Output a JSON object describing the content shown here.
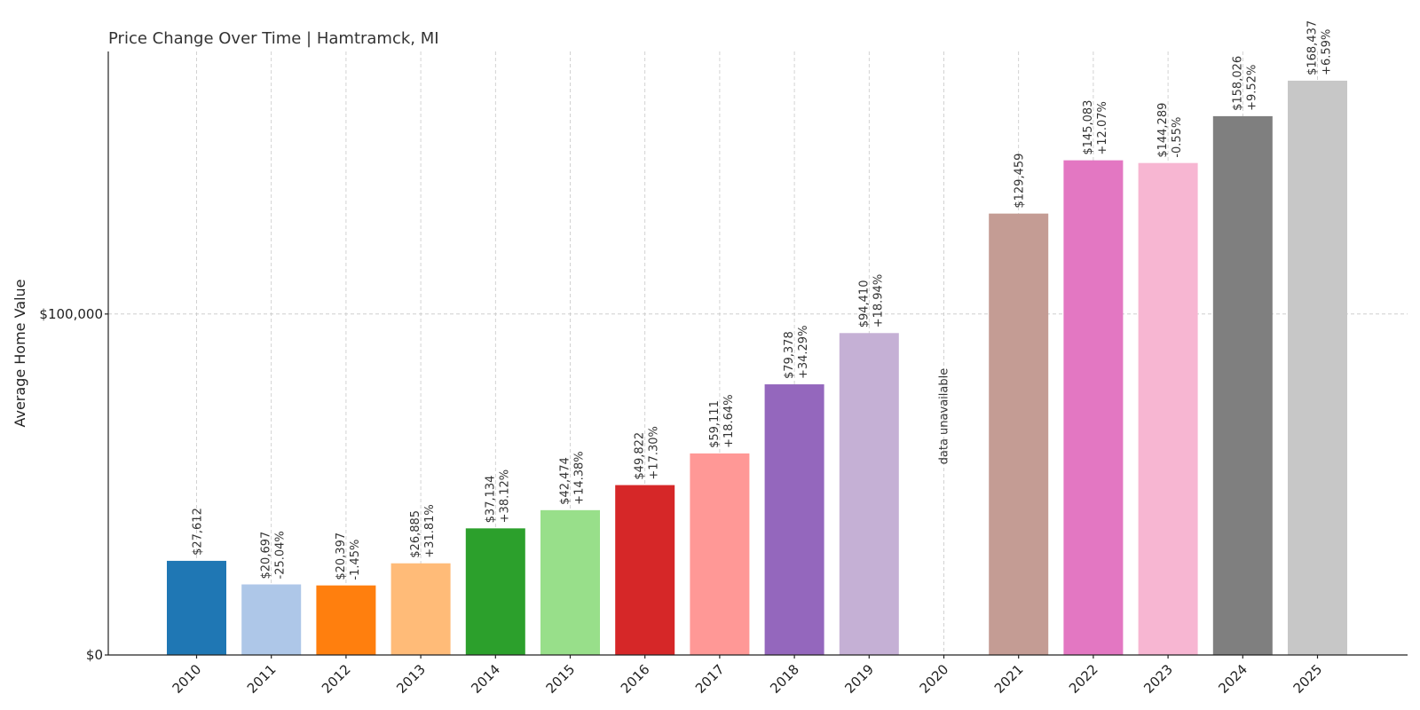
{
  "chart_data": {
    "type": "bar",
    "title": "Price Change Over Time | Hamtramck, MI",
    "ylabel": "Average Home Value",
    "xlabel": "",
    "ylim": [
      0,
      177000
    ],
    "y_ticks": [
      {
        "value": 0,
        "label": "$0"
      },
      {
        "value": 100000,
        "label": "$100,000"
      }
    ],
    "grid": true,
    "categories": [
      "2010",
      "2011",
      "2012",
      "2013",
      "2014",
      "2015",
      "2016",
      "2017",
      "2018",
      "2019",
      "2020",
      "2021",
      "2022",
      "2023",
      "2024",
      "2025"
    ],
    "values": [
      27612,
      20697,
      20397,
      26885,
      37134,
      42474,
      49822,
      59111,
      79378,
      94410,
      null,
      129459,
      145083,
      144289,
      158026,
      168437
    ],
    "value_labels": [
      "$27,612",
      "$20,697",
      "$20,397",
      "$26,885",
      "$37,134",
      "$42,474",
      "$49,822",
      "$59,111",
      "$79,378",
      "$94,410",
      "",
      "$129,459",
      "$145,083",
      "$144,289",
      "$158,026",
      "$168,437"
    ],
    "change_labels": [
      "",
      "-25.04%",
      "-1.45%",
      "+31.81%",
      "+38.12%",
      "+14.38%",
      "+17.30%",
      "+18.64%",
      "+34.29%",
      "+18.94%",
      "",
      "",
      "+12.07%",
      "-0.55%",
      "+9.52%",
      "+6.59%"
    ],
    "missing_label": "data unavailable",
    "colors": [
      "#1f77b4",
      "#aec7e8",
      "#ff7f0e",
      "#ffbb78",
      "#2ca02c",
      "#98df8a",
      "#d62728",
      "#ff9896",
      "#9467bd",
      "#c5b0d5",
      "#8c564b",
      "#c49c94",
      "#e377c2",
      "#f7b6d2",
      "#7f7f7f",
      "#c7c7c7"
    ]
  }
}
